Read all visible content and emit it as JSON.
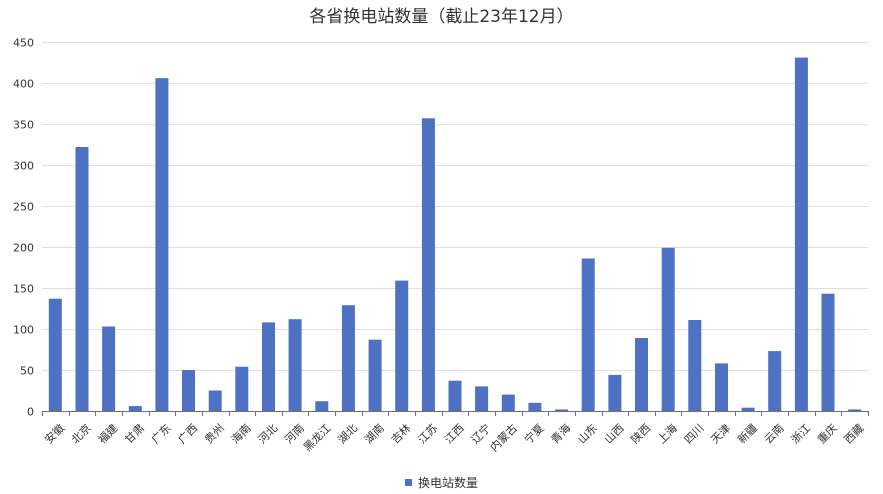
{
  "chart_data": {
    "type": "bar",
    "title": "各省换电站数量（截止23年12月）",
    "xlabel": "",
    "ylabel": "",
    "ylim": [
      0,
      450
    ],
    "yticks": [
      0,
      50,
      100,
      150,
      200,
      250,
      300,
      350,
      400,
      450
    ],
    "grid": true,
    "legend_position": "bottom",
    "categories": [
      "安徽",
      "北京",
      "福建",
      "甘肃",
      "广东",
      "广西",
      "贵州",
      "海南",
      "河北",
      "河南",
      "黑龙江",
      "湖北",
      "湖南",
      "吉林",
      "江苏",
      "江西",
      "辽宁",
      "内蒙古",
      "宁夏",
      "青海",
      "山东",
      "山西",
      "陕西",
      "上海",
      "四川",
      "天津",
      "新疆",
      "云南",
      "浙江",
      "重庆",
      "西藏"
    ],
    "series": [
      {
        "name": "换电站数量",
        "color": "#4e71c4",
        "values": [
          137,
          322,
          103,
          6,
          406,
          50,
          25,
          54,
          108,
          112,
          12,
          129,
          87,
          159,
          357,
          37,
          30,
          20,
          10,
          2,
          186,
          44,
          89,
          199,
          111,
          58,
          4,
          73,
          431,
          143,
          2
        ]
      }
    ]
  }
}
